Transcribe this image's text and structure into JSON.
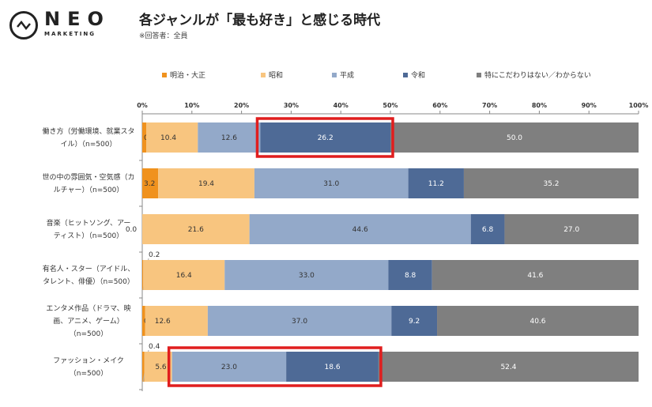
{
  "logo": {
    "name": "NEO",
    "sub": "MARKETING"
  },
  "title": "各ジャンルが「最も好き」と感じる時代",
  "subtitle": "※回答者：全員",
  "chart_data": {
    "type": "bar",
    "orientation": "horizontal-stacked-100",
    "xlim": [
      0,
      100
    ],
    "x_ticks": [
      "0%",
      "10%",
      "20%",
      "30%",
      "40%",
      "50%",
      "60%",
      "70%",
      "80%",
      "90%",
      "100%"
    ],
    "legend_position": "top",
    "categories": [
      [
        "働き方（労働環境、就業スタ",
        "イル）（n=500）"
      ],
      [
        "世の中の雰囲気・空気感（カ",
        "ルチャー）（n=500）"
      ],
      [
        "音楽（ヒットソング、アー",
        "ティスト）（n=500）"
      ],
      [
        "有名人・スター（アイドル、",
        "タレント、俳優）（n=500）"
      ],
      [
        "エンタメ作品（ドラマ、映",
        "画、アニメ、ゲーム）",
        "（n=500）"
      ],
      [
        "ファッション・メイク",
        "（n=500）"
      ]
    ],
    "series": [
      {
        "name": "明治・大正",
        "color": "#F0921E",
        "values": [
          0.8,
          3.2,
          0.0,
          0.2,
          0.6,
          0.4
        ]
      },
      {
        "name": "昭和",
        "color": "#F8C57F",
        "values": [
          10.4,
          19.4,
          21.6,
          16.4,
          12.6,
          5.6
        ]
      },
      {
        "name": "平成",
        "color": "#93A9C9",
        "values": [
          12.6,
          31.0,
          44.6,
          33.0,
          37.0,
          23.0
        ]
      },
      {
        "name": "令和",
        "color": "#4E6A96",
        "values": [
          26.2,
          11.2,
          6.8,
          8.8,
          9.2,
          18.6
        ]
      },
      {
        "name": "特にこだわりはない／わからない",
        "color": "#7F7F7F",
        "values": [
          50.0,
          35.2,
          27.0,
          41.6,
          40.6,
          52.4
        ]
      }
    ],
    "highlights": [
      {
        "category_index": 0,
        "series": [
          "令和"
        ],
        "color": "#E01E1E"
      },
      {
        "category_index": 5,
        "series": [
          "平成",
          "令和"
        ],
        "color": "#E01E1E"
      }
    ]
  }
}
